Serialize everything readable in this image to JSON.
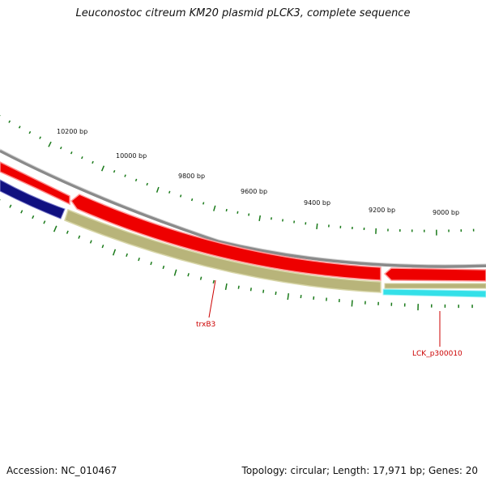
{
  "title": "Leuconostoc citreum KM20 plasmid pLCK3, complete sequence",
  "footer": {
    "accession": "Accession: NC_010467",
    "summary": "Topology: circular; Length: 17,971 bp; Genes: 20"
  },
  "position_labels": [
    "10200 bp",
    "10000 bp",
    "9800 bp",
    "9600 bp",
    "9400 bp",
    "9200 bp",
    "9000 bp"
  ],
  "gene_labels": [
    "trxB3",
    "LCK_p300010"
  ],
  "colors": {
    "backbone": "#8a8a8a",
    "forward_gene": "#ee0000",
    "reverse_gene": "#b8b47a",
    "reverse_gene_dark": "#101080",
    "other_feature": "#33e0e8",
    "ticks": "#1a7a1a",
    "label": "#cc0000"
  }
}
